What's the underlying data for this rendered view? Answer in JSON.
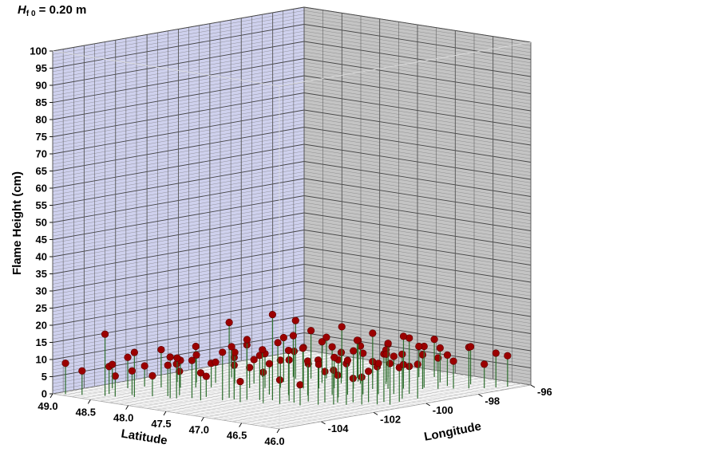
{
  "chart_data": {
    "type": "scatter3d",
    "title": {
      "symbol": "H",
      "subscript": "f 0",
      "rest": " = 0.20 m"
    },
    "zlabel": "Flame Height (cm)",
    "xlabel": "Latitude",
    "ylabel": "Longitude",
    "z_ticks": [
      "0",
      "5",
      "10",
      "15",
      "20",
      "25",
      "30",
      "35",
      "40",
      "45",
      "50",
      "55",
      "60",
      "65",
      "70",
      "75",
      "80",
      "85",
      "90",
      "95",
      "100"
    ],
    "lat_ticks": [
      "49.0",
      "48.5",
      "48.0",
      "47.5",
      "47.0",
      "46.5",
      "46.0"
    ],
    "lon_ticks": [
      "-104",
      "-102",
      "-100",
      "-98",
      "-96"
    ],
    "zlim": [
      0,
      100
    ],
    "lat_range": [
      49.0,
      46.0
    ],
    "lon_range": [
      -105.6,
      -96
    ],
    "grid": true,
    "colors": {
      "marker": "#9b0000",
      "stem": "#2e6e2e",
      "left_wall": "#cfd1ee",
      "right_wall": "#c4c4c4",
      "floor": "#ffffff"
    },
    "points": [
      [
        48.9,
        -105.4,
        9
      ],
      [
        48.75,
        -105.2,
        7
      ],
      [
        48.55,
        -104.9,
        18
      ],
      [
        48.6,
        -104.6,
        8
      ],
      [
        48.45,
        -104.8,
        6
      ],
      [
        48.4,
        -104.3,
        7
      ],
      [
        48.3,
        -104.5,
        13
      ],
      [
        48.2,
        -104.1,
        6
      ],
      [
        48.1,
        -103.8,
        9
      ],
      [
        48.0,
        -104.0,
        12
      ],
      [
        48.05,
        -103.5,
        7
      ],
      [
        47.95,
        -103.9,
        10
      ],
      [
        47.85,
        -103.6,
        11
      ],
      [
        47.8,
        -103.2,
        6
      ],
      [
        47.7,
        -103.7,
        8
      ],
      [
        47.6,
        -102.9,
        22
      ],
      [
        47.55,
        -103.3,
        14
      ],
      [
        47.5,
        -103.0,
        10
      ],
      [
        47.4,
        -102.8,
        16
      ],
      [
        47.35,
        -103.2,
        6
      ],
      [
        47.3,
        -102.6,
        13
      ],
      [
        47.2,
        -102.4,
        25
      ],
      [
        47.15,
        -102.9,
        9
      ],
      [
        47.05,
        -102.2,
        12
      ],
      [
        47.0,
        -102.7,
        7
      ],
      [
        46.95,
        -102.3,
        15
      ],
      [
        46.9,
        -101.9,
        11
      ],
      [
        46.8,
        -102.5,
        6
      ],
      [
        46.75,
        -101.7,
        9
      ],
      [
        46.7,
        -102.1,
        13
      ],
      [
        46.65,
        -101.5,
        8
      ],
      [
        46.6,
        -101.8,
        10
      ],
      [
        46.55,
        -101.2,
        7
      ],
      [
        46.5,
        -101.6,
        12
      ],
      [
        46.45,
        -100.9,
        9
      ],
      [
        46.4,
        -101.3,
        8
      ],
      [
        46.35,
        -100.6,
        14
      ],
      [
        46.3,
        -101.0,
        11
      ],
      [
        46.25,
        -100.3,
        10
      ],
      [
        46.2,
        -100.8,
        12
      ],
      [
        48.8,
        -103.9,
        7
      ],
      [
        48.7,
        -103.6,
        9
      ],
      [
        48.65,
        -103.1,
        6
      ],
      [
        48.5,
        -102.9,
        11
      ],
      [
        48.35,
        -102.6,
        8
      ],
      [
        48.25,
        -102.3,
        12
      ],
      [
        48.15,
        -102.0,
        7
      ],
      [
        47.95,
        -101.7,
        9
      ],
      [
        47.85,
        -101.4,
        6
      ],
      [
        47.75,
        -101.1,
        10
      ],
      [
        47.65,
        -100.8,
        8
      ],
      [
        47.45,
        -100.5,
        12
      ],
      [
        47.35,
        -100.2,
        7
      ],
      [
        47.25,
        -99.9,
        9
      ],
      [
        47.1,
        -99.6,
        11
      ],
      [
        46.95,
        -99.3,
        8
      ],
      [
        46.85,
        -99.0,
        13
      ],
      [
        46.75,
        -98.7,
        7
      ],
      [
        46.6,
        -98.4,
        10
      ],
      [
        46.5,
        -98.1,
        9
      ],
      [
        46.4,
        -97.8,
        8
      ],
      [
        46.3,
        -97.5,
        12
      ],
      [
        46.2,
        -97.2,
        7
      ],
      [
        46.15,
        -96.9,
        10
      ],
      [
        46.1,
        -96.6,
        9
      ],
      [
        47.9,
        -99.5,
        17
      ],
      [
        47.8,
        -99.2,
        14
      ],
      [
        47.7,
        -98.9,
        12
      ],
      [
        47.6,
        -98.6,
        15
      ],
      [
        47.5,
        -98.3,
        11
      ],
      [
        47.4,
        -98.0,
        13
      ],
      [
        47.3,
        -97.7,
        10
      ],
      [
        47.2,
        -97.4,
        12
      ],
      [
        47.1,
        -97.1,
        9
      ],
      [
        47.0,
        -96.8,
        11
      ],
      [
        48.4,
        -100.5,
        9
      ],
      [
        48.3,
        -100.2,
        11
      ],
      [
        48.2,
        -99.9,
        8
      ],
      [
        48.1,
        -99.6,
        10
      ],
      [
        48.0,
        -99.3,
        12
      ],
      [
        47.85,
        -100.1,
        13
      ],
      [
        47.7,
        -99.8,
        10
      ],
      [
        47.55,
        -99.5,
        12
      ],
      [
        47.4,
        -99.2,
        9
      ],
      [
        47.25,
        -98.9,
        11
      ],
      [
        46.9,
        -100.4,
        10
      ],
      [
        46.8,
        -100.1,
        12
      ],
      [
        46.7,
        -99.8,
        9
      ],
      [
        46.6,
        -99.5,
        11
      ],
      [
        46.5,
        -99.2,
        8
      ],
      [
        47.0,
        -100.7,
        14
      ],
      [
        46.85,
        -100.9,
        11
      ],
      [
        47.15,
        -101.2,
        10
      ],
      [
        47.3,
        -101.5,
        13
      ],
      [
        47.45,
        -101.8,
        9
      ],
      [
        48.6,
        -102.0,
        7
      ],
      [
        48.45,
        -101.7,
        8
      ],
      [
        48.3,
        -101.4,
        6
      ],
      [
        48.15,
        -101.1,
        9
      ],
      [
        48.0,
        -100.8,
        7
      ],
      [
        46.35,
        -99.9,
        13
      ],
      [
        46.25,
        -99.6,
        10
      ],
      [
        46.45,
        -97.0,
        11
      ],
      [
        46.55,
        -97.6,
        9
      ],
      [
        46.65,
        -98.2,
        12
      ],
      [
        47.05,
        -98.5,
        10
      ],
      [
        46.95,
        -97.9,
        13
      ],
      [
        47.15,
        -98.2,
        8
      ],
      [
        47.35,
        -98.7,
        12
      ],
      [
        46.75,
        -97.3,
        10
      ]
    ]
  }
}
